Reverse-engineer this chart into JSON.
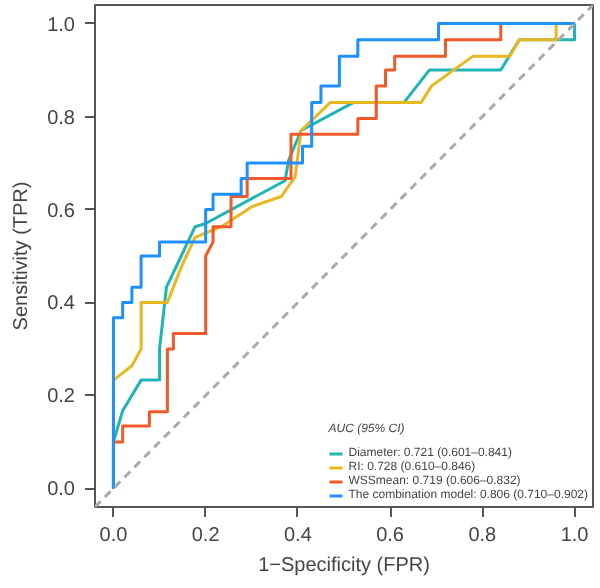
{
  "chart_data": {
    "type": "line",
    "xlabel": "1−Specificity (FPR)",
    "ylabel": "Sensitivity (TPR)",
    "legend_title": "AUC (95% CI)",
    "legend": "bottom right",
    "grid": false,
    "marker": "none",
    "xlim": [
      -0.04,
      1.04
    ],
    "ylim": [
      -0.04,
      1.04
    ],
    "xticks": [
      {
        "value": 0,
        "label": "0.0"
      },
      0.2,
      0.4,
      0.6,
      0.8,
      {
        "value": 1,
        "label": "1.0"
      }
    ],
    "yticks": [
      {
        "value": 0,
        "label": "0.0"
      },
      0.2,
      0.4,
      0.6,
      0.8,
      {
        "value": 1,
        "label": "1.0"
      }
    ],
    "series": [
      {
        "name": "Diameter: 0.721 (0.601–0.841)",
        "color": "#1fb5b5",
        "x": [
          0,
          0,
          0.02,
          0.06,
          0.1,
          0.1,
          0.115,
          0.147,
          0.177,
          0.2,
          0.372,
          0.38,
          0.407,
          0.52,
          0.63,
          0.685,
          0.84,
          0.88,
          1.0,
          1.0
        ],
        "values": [
          0,
          0.1,
          0.167,
          0.233,
          0.233,
          0.3,
          0.433,
          0.5,
          0.563,
          0.57,
          0.662,
          0.706,
          0.77,
          0.83,
          0.83,
          0.9,
          0.9,
          0.965,
          0.965,
          1.0
        ]
      },
      {
        "name": "RI: 0.728 (0.610–0.846)",
        "color": "#e8b820",
        "x": [
          0,
          0,
          0.04,
          0.06,
          0.06,
          0.117,
          0.147,
          0.177,
          0.234,
          0.3,
          0.364,
          0.394,
          0.407,
          0.47,
          0.667,
          0.69,
          0.78,
          0.86,
          0.88,
          0.96,
          0.96,
          1.0
        ],
        "values": [
          0,
          0.233,
          0.264,
          0.3,
          0.4,
          0.4,
          0.476,
          0.54,
          0.563,
          0.606,
          0.628,
          0.67,
          0.77,
          0.83,
          0.83,
          0.866,
          0.93,
          0.93,
          0.965,
          0.965,
          1.0,
          1.0
        ]
      },
      {
        "name": "WSSmean: 0.719 (0.606–0.832)",
        "color": "#f05a28",
        "x": [
          0,
          0,
          0.02,
          0.02,
          0.078,
          0.078,
          0.117,
          0.117,
          0.13,
          0.13,
          0.2,
          0.2,
          0.216,
          0.216,
          0.255,
          0.255,
          0.29,
          0.29,
          0.385,
          0.385,
          0.53,
          0.53,
          0.57,
          0.57,
          0.59,
          0.59,
          0.61,
          0.61,
          0.72,
          0.72,
          0.84,
          0.84,
          1.0
        ],
        "values": [
          0,
          0.1,
          0.1,
          0.134,
          0.134,
          0.165,
          0.165,
          0.3,
          0.3,
          0.333,
          0.333,
          0.5,
          0.53,
          0.563,
          0.563,
          0.628,
          0.628,
          0.667,
          0.667,
          0.762,
          0.762,
          0.796,
          0.796,
          0.866,
          0.866,
          0.9,
          0.9,
          0.93,
          0.93,
          0.965,
          0.965,
          1.0,
          1.0
        ]
      },
      {
        "name": "The combination model: 0.806 (0.710–0.902)",
        "color": "#1e90ff",
        "x": [
          0,
          0,
          0.02,
          0.02,
          0.04,
          0.04,
          0.06,
          0.06,
          0.1,
          0.1,
          0.2,
          0.2,
          0.216,
          0.216,
          0.277,
          0.277,
          0.29,
          0.29,
          0.41,
          0.41,
          0.43,
          0.43,
          0.45,
          0.45,
          0.49,
          0.49,
          0.53,
          0.53,
          0.705,
          0.705,
          1.0
        ],
        "values": [
          0,
          0.367,
          0.367,
          0.4,
          0.4,
          0.433,
          0.433,
          0.5,
          0.5,
          0.53,
          0.53,
          0.6,
          0.6,
          0.633,
          0.633,
          0.667,
          0.667,
          0.7,
          0.7,
          0.736,
          0.736,
          0.83,
          0.83,
          0.866,
          0.866,
          0.93,
          0.93,
          0.965,
          0.965,
          1.0,
          1.0
        ]
      },
      {
        "color": "#aaaaaa",
        "line_style": "dashed",
        "x": [
          -0.04,
          1.04
        ],
        "values": [
          -0.04,
          1.04
        ]
      }
    ]
  }
}
